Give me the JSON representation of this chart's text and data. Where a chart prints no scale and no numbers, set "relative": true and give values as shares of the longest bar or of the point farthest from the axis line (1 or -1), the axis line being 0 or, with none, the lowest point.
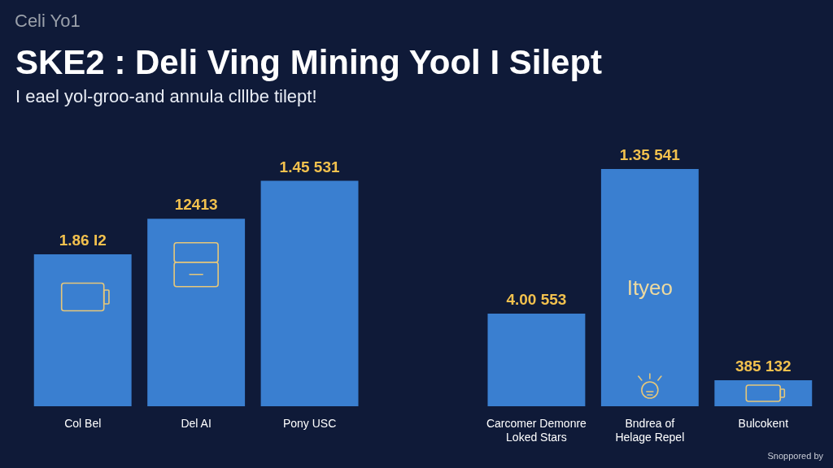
{
  "chart_data": {
    "type": "bar",
    "title": "SKE2 : Deli Ving Mining Yool I Silept",
    "subtitle": "I eael yol-groo-and annula clllbe tilept!",
    "categories": [
      "Col Bel",
      "Del AI",
      "Pony USC",
      null,
      "Carcomer Demonre\nLoked Stars",
      "Bndrea of\nHelage Repel",
      "Bulcokent"
    ],
    "values": [
      0.64,
      0.79,
      0.95,
      null,
      0.39,
      1,
      0.11
    ],
    "color": "#3a7fd0",
    "relative": true,
    "annotations": [
      "Celi Yo1",
      "Snoppored by",
      "Ityeo",
      {
        "text": "1.86 I2",
        "x": "Col Bel",
        "y": 0.64
      },
      {
        "text": "12413",
        "x": "Del AI",
        "y": 0.79
      },
      {
        "text": "1.45 531",
        "x": "Pony USC",
        "y": 0.95
      },
      {
        "text": "4.00 553",
        "x": "Carcomer Demonre\nLoked Stars",
        "y": 0.39
      },
      {
        "text": "1.35 541",
        "x": "Bndrea of\nHelage Repel",
        "y": 1
      },
      {
        "text": "385 132",
        "x": "Bulcokent",
        "y": 0.11
      }
    ]
  }
}
